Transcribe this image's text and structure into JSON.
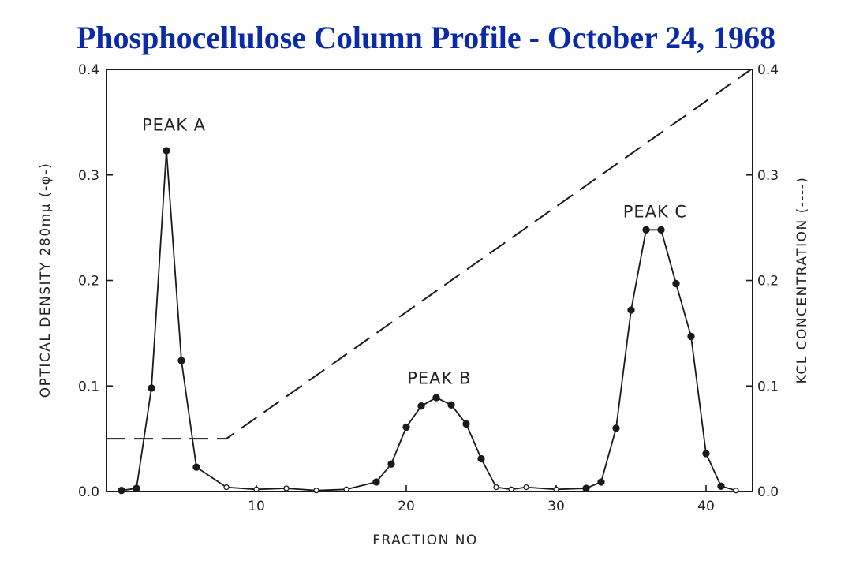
{
  "header": {
    "title": "Phosphocellulose Column Profile - October 24, 1968",
    "title_color": "#0a2aa8"
  },
  "chart_data": {
    "type": "line",
    "title": "Phosphocellulose Column Profile - October 24, 1968",
    "xlabel": "FRACTION NO",
    "ylabel_left": "OPTICAL DENSITY  280mμ (-φ-)",
    "ylabel_right": "KCL CONCENTRATION (----)",
    "xlim": [
      0,
      43
    ],
    "ylim": [
      0,
      0.4
    ],
    "x_ticks": [
      {
        "value": 10,
        "label": "10"
      },
      {
        "value": 20,
        "label": "20"
      },
      {
        "value": 30,
        "label": "30"
      },
      {
        "value": 40,
        "label": "40"
      }
    ],
    "y_ticks_left": [
      {
        "value": 0,
        "label": "0.0"
      },
      {
        "value": 0.1,
        "label": "0.1"
      },
      {
        "value": 0.2,
        "label": "0.2"
      },
      {
        "value": 0.3,
        "label": "0.3"
      },
      {
        "value": 0.4,
        "label": "0.4"
      }
    ],
    "y_ticks_right": [
      {
        "value": 0,
        "label": "0.0"
      },
      {
        "value": 0.1,
        "label": "0.1"
      },
      {
        "value": 0.2,
        "label": "0.2"
      },
      {
        "value": 0.3,
        "label": "0.3"
      },
      {
        "value": 0.4,
        "label": "0.4"
      }
    ],
    "series": [
      {
        "style": "solid",
        "x": [
          1,
          2,
          3,
          4,
          5,
          6,
          8,
          10,
          12,
          14,
          16,
          18,
          19,
          20,
          21,
          22,
          23,
          24,
          25,
          26,
          27,
          28,
          30,
          32,
          33,
          34,
          35,
          36,
          37,
          38,
          39,
          40,
          41,
          42
        ],
        "y": [
          0.001,
          0.003,
          0.098,
          0.323,
          0.124,
          0.023,
          0.004,
          0.002,
          0.003,
          0.001,
          0.002,
          0.009,
          0.026,
          0.061,
          0.081,
          0.089,
          0.082,
          0.064,
          0.031,
          0.004,
          0.002,
          0.004,
          0.002,
          0.003,
          0.009,
          0.06,
          0.172,
          0.248,
          0.248,
          0.197,
          0.147,
          0.036,
          0.005,
          0.001
        ],
        "filled": [
          true,
          true,
          true,
          true,
          true,
          true,
          false,
          false,
          false,
          false,
          false,
          true,
          true,
          true,
          true,
          true,
          true,
          true,
          true,
          false,
          false,
          false,
          false,
          true,
          true,
          true,
          true,
          true,
          true,
          true,
          true,
          true,
          true,
          false
        ]
      },
      {
        "style": "dashed",
        "x": [
          0,
          8,
          43
        ],
        "y": [
          0.05,
          0.05,
          0.4
        ]
      }
    ],
    "annotations": [
      {
        "text": "PEAK A",
        "x": 4.5,
        "y": 0.342
      },
      {
        "text": "PEAK B",
        "x": 22.2,
        "y": 0.102
      },
      {
        "text": "PEAK C",
        "x": 36.6,
        "y": 0.26
      }
    ],
    "grid": false
  }
}
